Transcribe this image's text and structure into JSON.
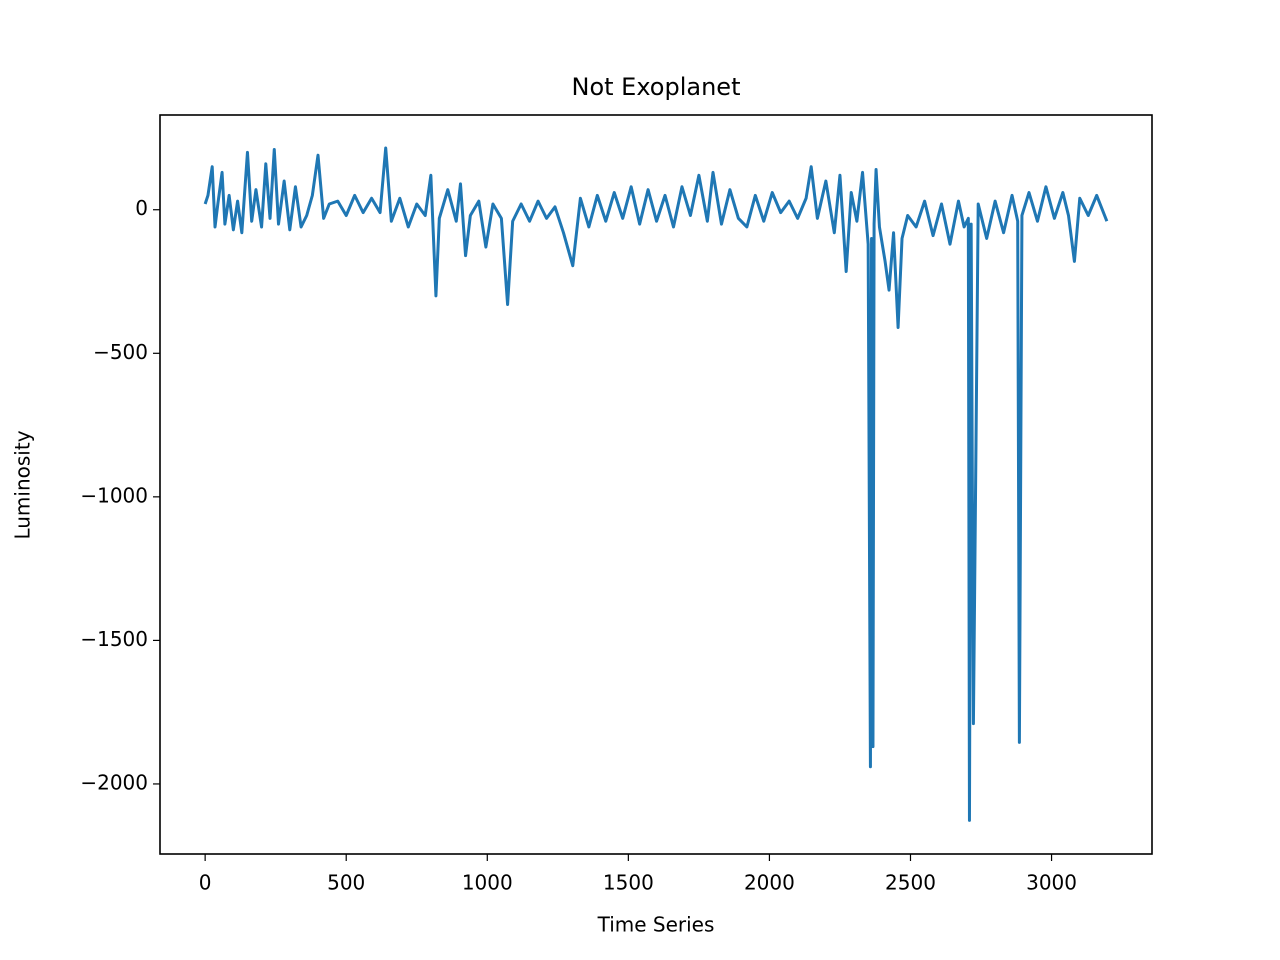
{
  "chart_data": {
    "type": "line",
    "title": "Not Exoplanet",
    "x_label": "Time Series",
    "y_label": "Luminosity",
    "x": [
      0,
      10,
      25,
      35,
      45,
      60,
      70,
      85,
      100,
      115,
      130,
      150,
      165,
      180,
      200,
      215,
      230,
      245,
      260,
      280,
      300,
      320,
      340,
      360,
      380,
      400,
      420,
      440,
      470,
      500,
      530,
      560,
      590,
      620,
      640,
      660,
      690,
      720,
      750,
      780,
      800,
      818,
      830,
      860,
      890,
      905,
      923,
      940,
      970,
      995,
      1020,
      1050,
      1072,
      1090,
      1120,
      1150,
      1180,
      1210,
      1240,
      1270,
      1303,
      1330,
      1360,
      1390,
      1420,
      1450,
      1480,
      1510,
      1540,
      1570,
      1600,
      1630,
      1660,
      1690,
      1720,
      1750,
      1780,
      1800,
      1830,
      1860,
      1890,
      1920,
      1950,
      1980,
      2010,
      2040,
      2070,
      2100,
      2130,
      2148,
      2170,
      2200,
      2230,
      2250,
      2272,
      2290,
      2310,
      2330,
      2350,
      2358,
      2362,
      2367,
      2371,
      2378,
      2390,
      2410,
      2424,
      2440,
      2456,
      2470,
      2490,
      2520,
      2550,
      2580,
      2610,
      2640,
      2670,
      2690,
      2705,
      2709,
      2715,
      2723,
      2740,
      2770,
      2800,
      2830,
      2860,
      2880,
      2886,
      2895,
      2920,
      2950,
      2980,
      3010,
      3040,
      3060,
      3081,
      3100,
      3130,
      3160,
      3196
    ],
    "series": [
      {
        "color": "#1f77b4",
        "values": [
          20,
          50,
          150,
          -60,
          20,
          130,
          -50,
          50,
          -70,
          30,
          -80,
          200,
          -40,
          70,
          -60,
          160,
          -30,
          210,
          -50,
          100,
          -70,
          80,
          -60,
          -20,
          50,
          190,
          -30,
          20,
          30,
          -20,
          50,
          -10,
          40,
          -10,
          215,
          -40,
          40,
          -60,
          20,
          -20,
          120,
          -300,
          -30,
          70,
          -40,
          90,
          -160,
          -20,
          30,
          -130,
          20,
          -30,
          -330,
          -40,
          20,
          -40,
          30,
          -30,
          10,
          -80,
          -195,
          40,
          -60,
          50,
          -40,
          60,
          -30,
          80,
          -50,
          70,
          -40,
          50,
          -60,
          80,
          -20,
          120,
          -40,
          130,
          -50,
          70,
          -30,
          -60,
          50,
          -40,
          60,
          -10,
          30,
          -30,
          40,
          150,
          -30,
          100,
          -80,
          120,
          -215,
          60,
          -40,
          130,
          -120,
          -1940,
          -100,
          -1870,
          -50,
          140,
          -60,
          -180,
          -280,
          -80,
          -410,
          -100,
          -20,
          -60,
          30,
          -90,
          20,
          -120,
          30,
          -60,
          -30,
          -2127,
          -50,
          -1790,
          20,
          -100,
          30,
          -80,
          50,
          -40,
          -1855,
          -20,
          60,
          -40,
          80,
          -30,
          60,
          -20,
          -180,
          40,
          -20,
          50,
          -40
        ]
      }
    ],
    "xlim": [
      -160,
      3356
    ],
    "ylim": [
      -2244,
      330
    ],
    "xticks": [
      0,
      500,
      1000,
      1500,
      2000,
      2500,
      3000
    ],
    "yticks": [
      {
        "value": -2000,
        "label": "−2000"
      },
      {
        "value": -1500,
        "label": "−1500"
      },
      {
        "value": -1000,
        "label": "−1000"
      },
      {
        "value": -500,
        "label": "−500"
      },
      0
    ]
  }
}
